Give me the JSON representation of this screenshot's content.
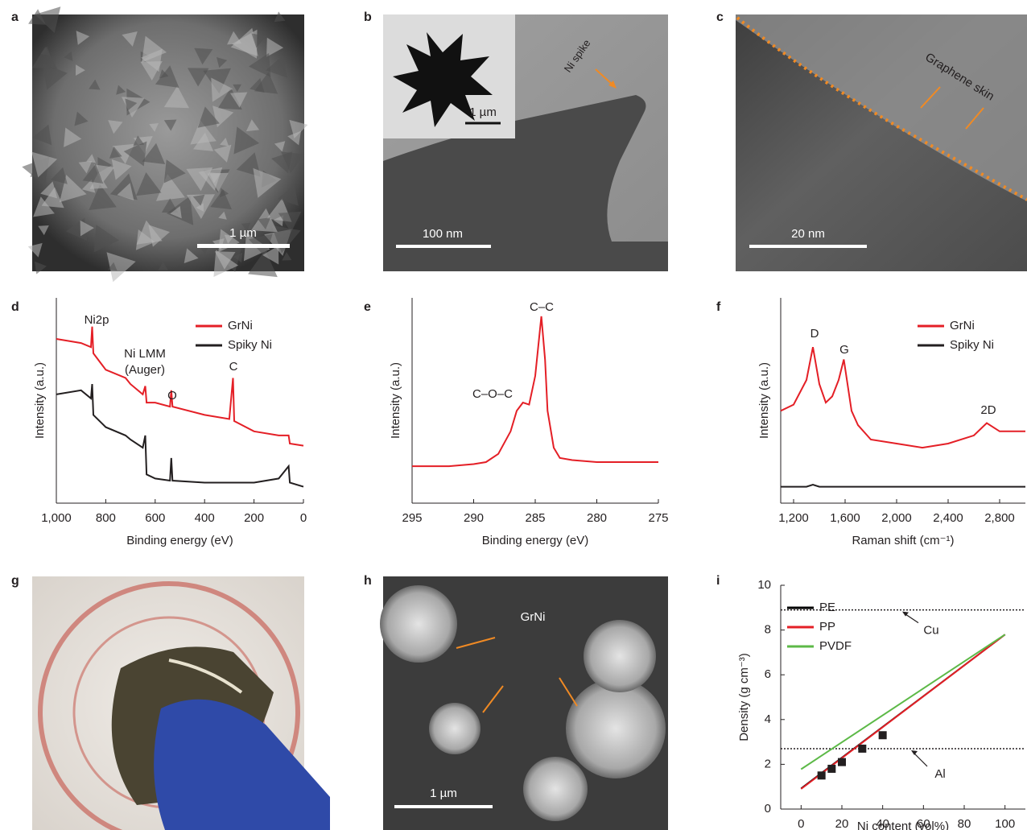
{
  "panels": [
    {
      "label": "a",
      "scale_bar": "1 µm"
    },
    {
      "label": "b",
      "scale_bar": "100 nm",
      "inset_scale_bar": "1 µm",
      "annotation": "Ni spike"
    },
    {
      "label": "c",
      "scale_bar": "20 nm",
      "annotation": "Graphene skin"
    },
    {
      "label": "g"
    },
    {
      "label": "h",
      "scale_bar": "1 µm",
      "annotation": "GrNi"
    }
  ],
  "chart_data": [
    {
      "panel_label": "d",
      "type": "line",
      "xlabel": "Binding energy (eV)",
      "ylabel": "Intensity (a.u.)",
      "x": [
        1000,
        900,
        860,
        855,
        850,
        800,
        720,
        700,
        650,
        640,
        635,
        600,
        540,
        535,
        530,
        400,
        300,
        285,
        280,
        200,
        100,
        60,
        55,
        0
      ],
      "xlim": [
        1000,
        0
      ],
      "ylim": [
        0,
        100
      ],
      "xticks": [
        {
          "value": 1000,
          "label": "1,000"
        },
        800,
        600,
        400,
        200,
        0
      ],
      "series": [
        {
          "name": "GrNi",
          "color": "#e41f26",
          "values": [
            80,
            78,
            76,
            86,
            73,
            65,
            61,
            58,
            53,
            57,
            49,
            49,
            47,
            55,
            47,
            43,
            41,
            61,
            40,
            35,
            33,
            33,
            29,
            28
          ]
        },
        {
          "name": "Spiky Ni",
          "color": "#231f20",
          "values": [
            53,
            55,
            51,
            58,
            43,
            37,
            33,
            31,
            27,
            33,
            14,
            12,
            11,
            22,
            11,
            10,
            10,
            10,
            10,
            10,
            12,
            18,
            10,
            8
          ]
        }
      ],
      "legend": "upper right",
      "annotations": [
        "Ni2p",
        "Ni LMM",
        "(Auger)",
        "O",
        "C"
      ]
    },
    {
      "panel_label": "e",
      "type": "line",
      "xlabel": "Binding energy (eV)",
      "ylabel": "Intensity (a.u.)",
      "x": [
        295,
        292,
        290,
        289,
        288,
        287,
        286.5,
        286,
        285.5,
        285,
        284.5,
        284.2,
        284,
        283.5,
        283,
        282,
        280,
        275
      ],
      "values": [
        18,
        18,
        19,
        20,
        24,
        35,
        45,
        49,
        48,
        62,
        91,
        70,
        45,
        27,
        22,
        21,
        20,
        20
      ],
      "color": "#e41f26",
      "xlim": [
        295,
        275
      ],
      "ylim": [
        0,
        100
      ],
      "xticks": [
        295,
        290,
        285,
        280,
        275
      ],
      "annotations": [
        "C–C",
        "C–O–C"
      ]
    },
    {
      "panel_label": "f",
      "type": "line",
      "xlabel": "Raman shift (cm⁻¹)",
      "ylabel": "Intensity (a.u.)",
      "x": [
        1100,
        1200,
        1300,
        1350,
        1400,
        1450,
        1500,
        1550,
        1590,
        1650,
        1700,
        1800,
        2000,
        2200,
        2400,
        2600,
        2700,
        2800,
        3000
      ],
      "xlim": [
        1100,
        3000
      ],
      "ylim": [
        0,
        100
      ],
      "xticks": [
        {
          "value": 1200,
          "label": "1,200"
        },
        {
          "value": 1600,
          "label": "1,600"
        },
        {
          "value": 2000,
          "label": "2,000"
        },
        {
          "value": 2400,
          "label": "2,400"
        },
        {
          "value": 2800,
          "label": "2,800"
        }
      ],
      "series": [
        {
          "name": "GrNi",
          "color": "#e41f26",
          "values": [
            45,
            48,
            60,
            76,
            58,
            49,
            52,
            60,
            70,
            45,
            38,
            31,
            29,
            27,
            29,
            33,
            39,
            35,
            35
          ]
        },
        {
          "name": "Spiky Ni",
          "color": "#231f20",
          "values": [
            8,
            8,
            8,
            9,
            8,
            8,
            8,
            8,
            8,
            8,
            8,
            8,
            8,
            8,
            8,
            8,
            8,
            8,
            8
          ]
        }
      ],
      "legend": "upper right",
      "annotations": [
        "D",
        "G",
        "2D"
      ]
    },
    {
      "panel_label": "i",
      "type": "line",
      "xlabel": "Ni content (vol%)",
      "ylabel": "Density (g cm⁻³)",
      "x": [
        0,
        100
      ],
      "xlim": [
        -10,
        110
      ],
      "ylim": [
        0,
        10
      ],
      "xticks": [
        0,
        20,
        40,
        60,
        80,
        100
      ],
      "yticks": [
        0,
        2,
        4,
        6,
        8,
        10
      ],
      "series": [
        {
          "name": "PE",
          "color": "#000000",
          "values": [
            0.92,
            7.8
          ]
        },
        {
          "name": "PP",
          "color": "#e41f26",
          "values": [
            0.9,
            7.8
          ]
        },
        {
          "name": "PVDF",
          "color": "#5cb947",
          "values": [
            1.78,
            7.8
          ]
        }
      ],
      "points": {
        "x": [
          10,
          15,
          20,
          30,
          40
        ],
        "values": [
          1.5,
          1.8,
          2.1,
          2.7,
          3.3
        ],
        "color": "#231f20"
      },
      "reference_lines": [
        {
          "name": "Cu",
          "value": 8.9
        },
        {
          "name": "Al",
          "value": 2.7
        }
      ],
      "legend": "upper left"
    }
  ]
}
